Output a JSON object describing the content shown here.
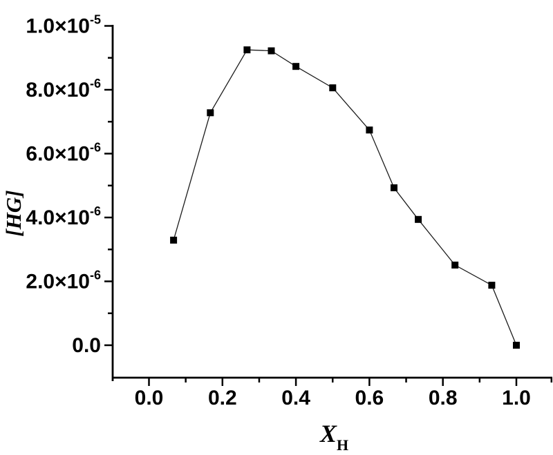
{
  "figure": {
    "background": "#ffffff",
    "colors": {
      "axis": "#000000",
      "series_line": "#1c1c1c",
      "marker": "#000000",
      "text": "#000000"
    }
  },
  "chart_data": {
    "type": "line",
    "title": "",
    "xlabel": {
      "main": "X",
      "sub": "H"
    },
    "ylabel": "[HG]",
    "marker": "filled-square",
    "grid": false,
    "legend": null,
    "axis_frame": "left-and-bottom-only",
    "xlim": [
      -0.098,
      1.099
    ],
    "ylim": [
      -1e-06,
      1.003e-05
    ],
    "x": [
      0.067,
      0.167,
      0.267,
      0.333,
      0.4,
      0.5,
      0.6,
      0.667,
      0.733,
      0.833,
      0.933,
      1.0
    ],
    "y": [
      3.29e-06,
      7.28e-06,
      9.25e-06,
      9.22e-06,
      8.73e-06,
      8.06e-06,
      6.74e-06,
      4.93e-06,
      3.94e-06,
      2.51e-06,
      1.88e-06,
      0.0
    ],
    "x_ticks": {
      "major_values": [
        0.0,
        0.2,
        0.4,
        0.6,
        0.8,
        1.0
      ],
      "major_labels": [
        "0.0",
        "0.2",
        "0.4",
        "0.6",
        "0.8",
        "1.0"
      ],
      "minor_values": [
        0.1,
        0.3,
        0.5,
        0.7,
        0.9,
        1.1
      ]
    },
    "y_ticks": {
      "major_values": [
        0.0,
        2e-06,
        4e-06,
        6e-06,
        8e-06,
        1e-05
      ],
      "major_labels": [
        "0.0",
        "2.0×10^-6",
        "4.0×10^-6",
        "6.0×10^-6",
        "8.0×10^-6",
        "1.0×10^-5"
      ],
      "minor_values": [
        1e-06,
        3e-06,
        5e-06,
        7e-06,
        9e-06
      ]
    }
  }
}
